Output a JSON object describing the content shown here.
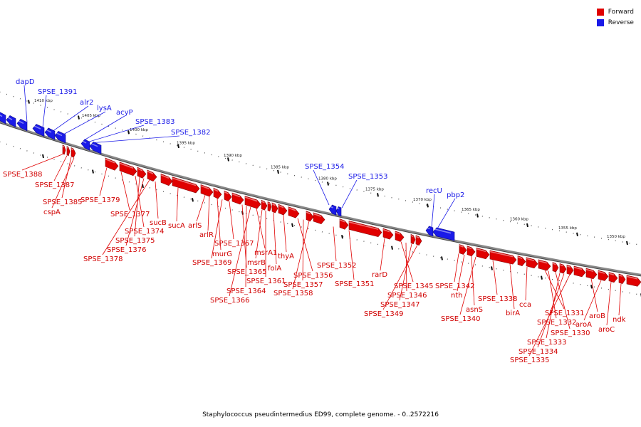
{
  "colors": {
    "forward": "#e00000",
    "reverse": "#1a1ae8",
    "axis": "#6e6e6e"
  },
  "legend": {
    "forward_label": "Forward",
    "reverse_label": "Reverse"
  },
  "caption": "Staphylococcus pseudintermedius ED99, complete genome. - 0..2572216",
  "scale_labels": [
    "1410 kbp",
    "1405 kbp",
    "1400 kbp",
    "1395 kbp",
    "1390 kbp",
    "1385 kbp",
    "1380 kbp",
    "1375 kbp",
    "1370 kbp",
    "1365 kbp",
    "1360 kbp",
    "1355 kbp",
    "1350 kbp"
  ],
  "reverse_labels": [
    "dapD",
    "SPSE_1391",
    "alr2",
    "lysA",
    "acyP",
    "SPSE_1383",
    "SPSE_1382",
    "SPSE_1354",
    "SPSE_1353",
    "recU",
    "pbp2"
  ],
  "forward_labels": [
    "SPSE_1388",
    "SPSE_1387",
    "SPSE_1385",
    "cspA",
    "SPSE_1379",
    "SPSE_1377",
    "SPSE_1374",
    "SPSE_1375",
    "SPSE_1376",
    "SPSE_1378",
    "sucB",
    "sucA",
    "arlS",
    "arlR",
    "murG",
    "SPSE_1369",
    "SPSE_1367",
    "SPSE_1365",
    "SPSE_1364",
    "SPSE_1366",
    "msrA1",
    "msrB",
    "SPSE_1361",
    "folA",
    "thyA",
    "SPSE_1356",
    "SPSE_1357",
    "SPSE_1358",
    "SPSE_1352",
    "SPSE_1351",
    "rarD",
    "SPSE_1345",
    "SPSE_1346",
    "SPSE_1347",
    "SPSE_1349",
    "SPSE_1342",
    "nth",
    "asnS",
    "SPSE_1340",
    "SPSE_1338",
    "birA",
    "cca",
    "SPSE_1331",
    "SPSE_1332",
    "SPSE_1330",
    "SPSE_1333",
    "SPSE_1334",
    "SPSE_1335",
    "aroB",
    "aroA",
    "aroC",
    "ndk"
  ]
}
